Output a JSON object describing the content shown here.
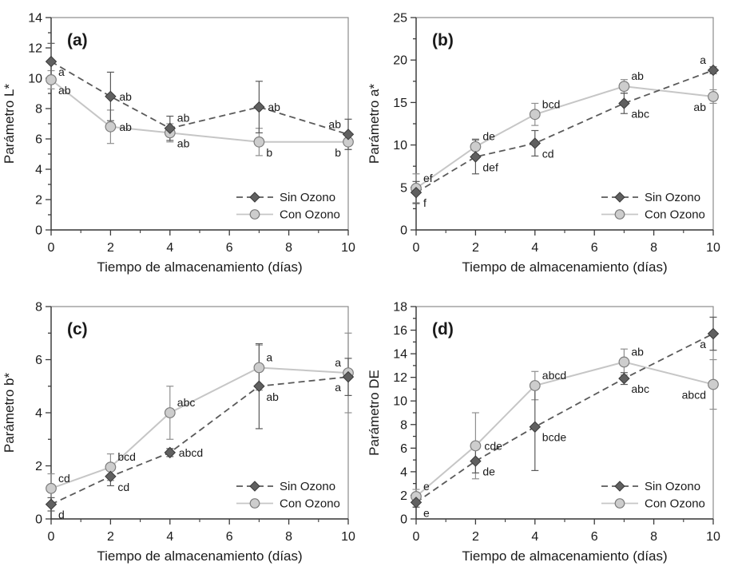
{
  "figure": {
    "xlabel": "Tiempo de almacenamiento (días)",
    "xlim": [
      0,
      10
    ],
    "x_ticks": [
      0,
      2,
      4,
      6,
      8,
      10
    ],
    "x_minor": [
      1,
      3,
      5,
      7,
      9
    ],
    "legend": {
      "position": "bottom-right",
      "items": [
        {
          "name": "Sin Ozono",
          "marker": "diamond",
          "line": "dashed"
        },
        {
          "name": "Con Ozono",
          "marker": "circle",
          "line": "solid"
        }
      ]
    },
    "colors": {
      "sin_line": "#5a5a5a",
      "sin_marker_fill": "#606060",
      "sin_marker_stroke": "#3a3a3a",
      "sin_error": "#5a5a5a",
      "con_line": "#c6c6c6",
      "con_marker_fill": "#cdcdcd",
      "con_marker_stroke": "#7d7d7d",
      "con_error": "#8f8f8f",
      "frame": "#8c8c8c",
      "axis": "#3b3b3b",
      "text": "#1a1a1a"
    },
    "grid": false
  },
  "chart_data": [
    {
      "type": "line",
      "panel_label": "(a)",
      "ylabel": "Parámetro L*",
      "xlabel": "Tiempo de almacenamiento (días)",
      "ylim": [
        0,
        14
      ],
      "y_major": 2,
      "y_minor": 1,
      "x": [
        0,
        2,
        4,
        7,
        10
      ],
      "series": [
        {
          "name": "Sin Ozono",
          "values": [
            11.1,
            8.8,
            6.7,
            8.1,
            6.3
          ],
          "errors": [
            1.2,
            1.6,
            0.8,
            1.7,
            1.0
          ],
          "point_labels": [
            "a",
            "ab",
            "ab",
            "ab",
            "ab"
          ],
          "label_pos": [
            "br",
            "r",
            "tr",
            "r",
            "tl"
          ]
        },
        {
          "name": "Con Ozono",
          "values": [
            9.9,
            6.8,
            6.4,
            5.8,
            5.8
          ],
          "errors": [
            0.6,
            1.1,
            0.6,
            0.9,
            0.5
          ],
          "point_labels": [
            "ab",
            "ab",
            "ab",
            "b",
            "b"
          ],
          "label_pos": [
            "br",
            "r",
            "br",
            "br",
            "bl"
          ]
        }
      ]
    },
    {
      "type": "line",
      "panel_label": "(b)",
      "ylabel": "Parámetro a*",
      "xlabel": "Tiempo de almacenamiento (días)",
      "ylim": [
        0,
        25
      ],
      "y_major": 5,
      "y_minor": 2.5,
      "x": [
        0,
        2,
        4,
        7,
        10
      ],
      "series": [
        {
          "name": "Sin Ozono",
          "values": [
            4.4,
            8.6,
            10.2,
            14.9,
            18.8
          ],
          "errors": [
            1.3,
            2.0,
            1.5,
            1.2,
            0.4
          ],
          "point_labels": [
            "f",
            "def",
            "cd",
            "abc",
            "a"
          ],
          "label_pos": [
            "br",
            "br",
            "br",
            "br",
            "tl"
          ]
        },
        {
          "name": "Con Ozono",
          "values": [
            4.9,
            9.8,
            13.6,
            16.9,
            15.7
          ],
          "errors": [
            1.7,
            0.9,
            1.3,
            0.8,
            0.8
          ],
          "point_labels": [
            "ef",
            "de",
            "bcd",
            "ab",
            "ab"
          ],
          "label_pos": [
            "tr",
            "tr",
            "tr",
            "tr",
            "bl"
          ]
        }
      ]
    },
    {
      "type": "line",
      "panel_label": "(c)",
      "ylabel": "Parámetro b*",
      "xlabel": "Tiempo de almacenamiento (días)",
      "ylim": [
        0,
        8
      ],
      "y_major": 2,
      "y_minor": 1,
      "x": [
        0,
        2,
        4,
        7,
        10
      ],
      "series": [
        {
          "name": "Sin Ozono",
          "values": [
            0.55,
            1.6,
            2.5,
            5.0,
            5.35
          ],
          "errors": [
            0.25,
            0.35,
            0.15,
            1.6,
            0.7
          ],
          "point_labels": [
            "d",
            "cd",
            "abcd",
            "ab",
            "a"
          ],
          "label_pos": [
            "br",
            "br",
            "r",
            "br",
            "bl"
          ]
        },
        {
          "name": "Con Ozono",
          "values": [
            1.15,
            1.95,
            4.0,
            5.7,
            5.5
          ],
          "errors": [
            0.55,
            0.5,
            1.0,
            0.85,
            1.5
          ],
          "point_labels": [
            "cd",
            "bcd",
            "abc",
            "a",
            "a"
          ],
          "label_pos": [
            "tr",
            "tr",
            "tr",
            "tr",
            "tl"
          ]
        }
      ]
    },
    {
      "type": "line",
      "panel_label": "(d)",
      "ylabel": "Parámetro DE",
      "xlabel": "Tiempo de almacenamiento (días)",
      "ylim": [
        0,
        18
      ],
      "y_major": 2,
      "y_minor": 1,
      "x": [
        0,
        2,
        4,
        7,
        10
      ],
      "series": [
        {
          "name": "Sin Ozono",
          "values": [
            1.4,
            4.9,
            7.8,
            11.9,
            15.7
          ],
          "errors": [
            0.4,
            1.0,
            3.7,
            0.5,
            1.4
          ],
          "point_labels": [
            "e",
            "de",
            "bcde",
            "abc",
            "a"
          ],
          "label_pos": [
            "br",
            "br",
            "br",
            "br",
            "bl"
          ]
        },
        {
          "name": "Con Ozono",
          "values": [
            1.9,
            6.2,
            11.3,
            13.3,
            11.4
          ],
          "errors": [
            0.6,
            2.8,
            1.2,
            1.1,
            2.1
          ],
          "point_labels": [
            "e",
            "cde",
            "abcd",
            "ab",
            "abcd"
          ],
          "label_pos": [
            "tr",
            "r",
            "tr",
            "tr",
            "bl"
          ]
        }
      ]
    }
  ]
}
